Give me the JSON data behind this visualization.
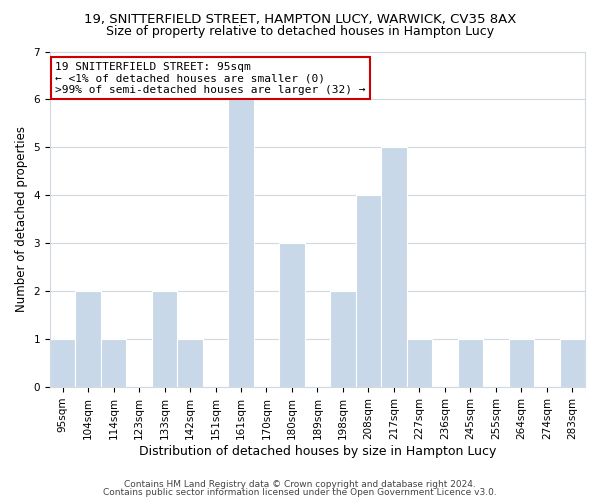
{
  "title1": "19, SNITTERFIELD STREET, HAMPTON LUCY, WARWICK, CV35 8AX",
  "title2": "Size of property relative to detached houses in Hampton Lucy",
  "xlabel": "Distribution of detached houses by size in Hampton Lucy",
  "ylabel": "Number of detached properties",
  "categories": [
    "95sqm",
    "104sqm",
    "114sqm",
    "123sqm",
    "133sqm",
    "142sqm",
    "151sqm",
    "161sqm",
    "170sqm",
    "180sqm",
    "189sqm",
    "198sqm",
    "208sqm",
    "217sqm",
    "227sqm",
    "236sqm",
    "245sqm",
    "255sqm",
    "264sqm",
    "274sqm",
    "283sqm"
  ],
  "values": [
    1,
    2,
    1,
    0,
    2,
    1,
    0,
    6,
    0,
    3,
    0,
    2,
    4,
    5,
    1,
    0,
    1,
    0,
    1,
    0,
    1
  ],
  "bar_color": "#c8d8e8",
  "bar_edge_color": "#ffffff",
  "annotation_box_text": [
    "19 SNITTERFIELD STREET: 95sqm",
    "← <1% of detached houses are smaller (0)",
    ">99% of semi-detached houses are larger (32) →"
  ],
  "annotation_box_color": "#ffffff",
  "annotation_box_edge_color": "#cc0000",
  "ylim": [
    0,
    7
  ],
  "yticks": [
    0,
    1,
    2,
    3,
    4,
    5,
    6,
    7
  ],
  "footnote1": "Contains HM Land Registry data © Crown copyright and database right 2024.",
  "footnote2": "Contains public sector information licensed under the Open Government Licence v3.0.",
  "background_color": "#ffffff",
  "grid_color": "#d0d8e0",
  "title1_fontsize": 9.5,
  "title2_fontsize": 9,
  "xlabel_fontsize": 9,
  "ylabel_fontsize": 8.5,
  "tick_fontsize": 7.5,
  "annotation_fontsize": 8,
  "footnote_fontsize": 6.5
}
